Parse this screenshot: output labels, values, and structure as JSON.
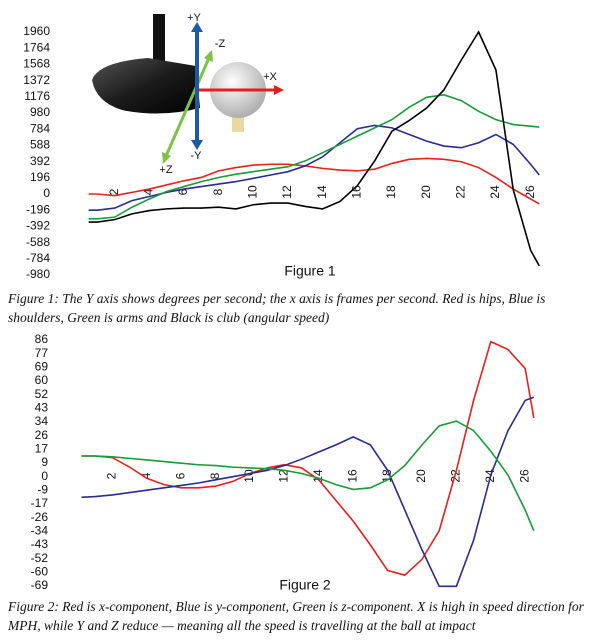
{
  "chart_data": [
    {
      "type": "line",
      "title": "Figure 1",
      "caption": "Figure 1: The Y axis shows degrees per second; the x axis is frames per second. Red is hips, Blue is shoulders, Green is arms and Black is club (angular speed)",
      "annotations": [
        "+Y",
        "-Z",
        "+X",
        "+Z",
        "-Y"
      ],
      "x": [
        0.5,
        1,
        2,
        3,
        4,
        5,
        6,
        7,
        8,
        9,
        10,
        11,
        12,
        13,
        14,
        15,
        16,
        17,
        18,
        19,
        20,
        21,
        22,
        23,
        24,
        25,
        26,
        26.5
      ],
      "xlim": [
        0,
        27.5
      ],
      "xticks": [
        2,
        4,
        6,
        8,
        10,
        12,
        14,
        16,
        18,
        20,
        22,
        24,
        26
      ],
      "ylim": [
        -980,
        1960
      ],
      "yticks": [
        1960,
        1764,
        1568,
        1372,
        1176,
        980,
        784,
        588,
        392,
        196,
        0,
        -196,
        -392,
        -588,
        -784,
        -980
      ],
      "series": [
        {
          "color": "#e8201e",
          "values": [
            0,
            0,
            -20,
            20,
            60,
            110,
            160,
            200,
            280,
            320,
            350,
            360,
            360,
            340,
            310,
            290,
            280,
            300,
            370,
            420,
            430,
            420,
            390,
            320,
            200,
            60,
            -60,
            -120
          ]
        },
        {
          "color": "#2b2b8f",
          "values": [
            -196,
            -196,
            -170,
            -80,
            -30,
            20,
            60,
            90,
            120,
            150,
            190,
            230,
            270,
            340,
            450,
            620,
            790,
            830,
            800,
            720,
            640,
            580,
            560,
            620,
            720,
            600,
            360,
            230
          ]
        },
        {
          "color": "#1a9a3a",
          "values": [
            -300,
            -300,
            -280,
            -160,
            -60,
            30,
            90,
            150,
            200,
            240,
            270,
            300,
            330,
            400,
            500,
            600,
            700,
            800,
            900,
            1050,
            1170,
            1200,
            1130,
            1000,
            900,
            840,
            820,
            810
          ]
        },
        {
          "color": "#000000",
          "values": [
            -340,
            -340,
            -310,
            -240,
            -200,
            -180,
            -170,
            -170,
            -160,
            -180,
            -130,
            -110,
            -110,
            -150,
            -180,
            -90,
            100,
            400,
            760,
            890,
            1040,
            1260,
            1620,
            1960,
            1500,
            50,
            -680,
            -870
          ]
        }
      ]
    },
    {
      "type": "line",
      "title": "Figure 2",
      "caption": "Figure 2: Red is x-component, Blue is y-component, Green is z-component. X is high in speed direction for MPH, while Y and Z reduce — meaning all the speed is travelling at the ball at impact",
      "x": [
        0.2,
        1,
        2,
        3,
        4,
        5,
        6,
        7,
        8,
        9,
        10,
        11,
        12,
        13,
        14,
        15,
        16,
        17,
        18,
        19,
        20,
        21,
        22,
        23,
        24,
        25,
        26,
        26.5
      ],
      "xlim": [
        0,
        27.5
      ],
      "xticks": [
        2,
        4,
        6,
        8,
        10,
        12,
        14,
        16,
        18,
        20,
        22,
        24,
        26
      ],
      "ylim": [
        -68.8,
        86
      ],
      "yticks": [
        86,
        {
          "value": 77.4,
          "label": "77"
        },
        {
          "value": 68.8,
          "label": "69"
        },
        {
          "value": 60.2,
          "label": "60"
        },
        {
          "value": 51.6,
          "label": "52"
        },
        43,
        {
          "value": 34.4,
          "label": "34"
        },
        {
          "value": 25.8,
          "label": "26"
        },
        {
          "value": 17.2,
          "label": "17"
        },
        {
          "value": 8.6,
          "label": "9"
        },
        0,
        {
          "value": -8.6,
          "label": "-9"
        },
        {
          "value": -17.2,
          "label": "-17"
        },
        {
          "value": -25.8,
          "label": "-26"
        },
        {
          "value": -34.4,
          "label": "-34"
        },
        -43,
        {
          "value": -51.6,
          "label": "-52"
        },
        {
          "value": -60.2,
          "label": "-60"
        },
        {
          "value": -68.8,
          "label": "-69"
        }
      ],
      "series": [
        {
          "color": "#e8201e",
          "values": [
            13,
            13,
            12,
            6,
            -1,
            -5,
            -7,
            -7,
            -6,
            -3,
            2,
            5.5,
            7.5,
            5.5,
            -2,
            -15,
            -28,
            -43,
            -59,
            -62,
            -52,
            -34,
            4,
            48,
            85,
            80,
            68,
            37
          ]
        },
        {
          "color": "#2b2b8f",
          "values": [
            -13,
            -12.5,
            -11.5,
            -10,
            -8.5,
            -7,
            -5.5,
            -4,
            -2,
            0,
            2,
            4,
            7,
            11,
            15.5,
            20,
            25,
            20,
            4,
            -21,
            -46,
            -69,
            -69,
            -40,
            1,
            29,
            48,
            50
          ]
        },
        {
          "color": "#1a9a3a",
          "values": [
            13,
            13,
            12.5,
            11.5,
            10.5,
            9.5,
            8.5,
            7.5,
            7,
            6,
            5.5,
            5,
            4,
            2,
            -1,
            -5,
            -8,
            -7,
            -2,
            7,
            20,
            32,
            35,
            29,
            16,
            1,
            -21,
            -34
          ]
        }
      ]
    }
  ]
}
